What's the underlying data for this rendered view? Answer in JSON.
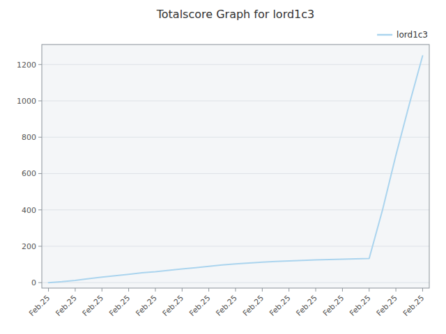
{
  "chart_data": {
    "type": "line",
    "title": "Totalscore Graph for lord1c3",
    "x": [
      0,
      1,
      2,
      3,
      4,
      5,
      6,
      7,
      8,
      9,
      10,
      11,
      12,
      13,
      14,
      15,
      16,
      17,
      18,
      19,
      20,
      21,
      22,
      23,
      24,
      25,
      26,
      27,
      28
    ],
    "series": [
      {
        "name": "lord1c3",
        "color": "#aad4ee",
        "values": [
          0,
          5,
          12,
          22,
          30,
          38,
          46,
          54,
          60,
          68,
          75,
          82,
          90,
          97,
          103,
          108,
          113,
          116,
          119,
          122,
          125,
          127,
          129,
          131,
          133,
          400,
          700,
          980,
          1248
        ]
      }
    ],
    "xlim": [
      -0.5,
      28.5
    ],
    "xticks": [
      {
        "value": 0,
        "label": "Feb.25"
      },
      {
        "value": 2,
        "label": "Feb.25"
      },
      {
        "value": 4,
        "label": "Feb.25"
      },
      {
        "value": 6,
        "label": "Feb.25"
      },
      {
        "value": 8,
        "label": "Feb.25"
      },
      {
        "value": 10,
        "label": "Feb.25"
      },
      {
        "value": 12,
        "label": "Feb.25"
      },
      {
        "value": 14,
        "label": "Feb.25"
      },
      {
        "value": 16,
        "label": "Feb.25"
      },
      {
        "value": 18,
        "label": "Feb.25"
      },
      {
        "value": 20,
        "label": "Feb.25"
      },
      {
        "value": 22,
        "label": "Feb.25"
      },
      {
        "value": 24,
        "label": "Feb.25"
      },
      {
        "value": 26,
        "label": "Feb.25"
      },
      {
        "value": 28,
        "label": "Feb.25"
      }
    ],
    "ylim": [
      -30,
      1310
    ],
    "yticks": [
      0,
      200,
      400,
      600,
      800,
      1000,
      1200
    ],
    "grid": "y",
    "legend": "top-right"
  }
}
